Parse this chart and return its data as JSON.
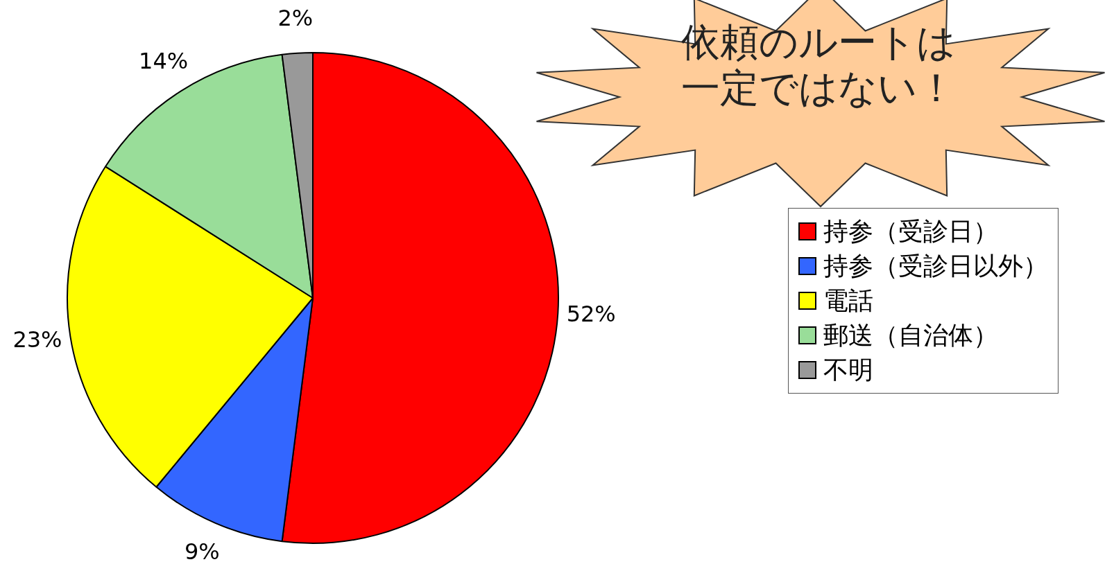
{
  "chart_data": {
    "type": "pie",
    "categories": [
      "持参（受診日）",
      "持参（受診日以外）",
      "電話",
      "郵送（自治体）",
      "不明"
    ],
    "values": [
      52,
      9,
      23,
      14,
      2
    ],
    "colors": [
      "#ff0000",
      "#3366ff",
      "#ffff00",
      "#99dd99",
      "#999999"
    ],
    "value_labels": [
      "52%",
      "9%",
      "23%",
      "14%",
      "2%"
    ],
    "legend": "right",
    "annotations": [
      "依頼のルートは",
      "一定ではない！"
    ]
  }
}
